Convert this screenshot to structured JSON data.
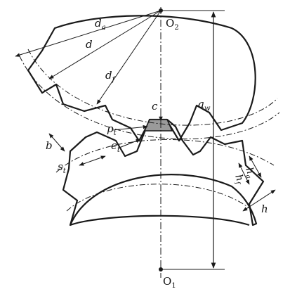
{
  "diagram": {
    "center_top": "O",
    "center_top_sub": "2",
    "center_bottom": "O",
    "center_bottom_sub": "1",
    "tip_diameter": "d",
    "tip_diameter_sub": "a",
    "pitch_diameter": "d",
    "root_diameter": "d",
    "root_diameter_sub": "f",
    "center_distance": "a",
    "center_distance_sub": "w",
    "clearance": "c",
    "pitch": "p",
    "pitch_sub": "t",
    "space_width": "e",
    "space_width_sub": "t",
    "tooth_thickness": "s",
    "tooth_thickness_sub": "t",
    "face_width": "b",
    "dedendum": "h",
    "dedendum_sub": "f",
    "addendum": "h",
    "addendum_sub": "a",
    "tooth_height": "h"
  },
  "colors": {
    "ink": "#1a1a1a",
    "background": "#ffffff"
  }
}
